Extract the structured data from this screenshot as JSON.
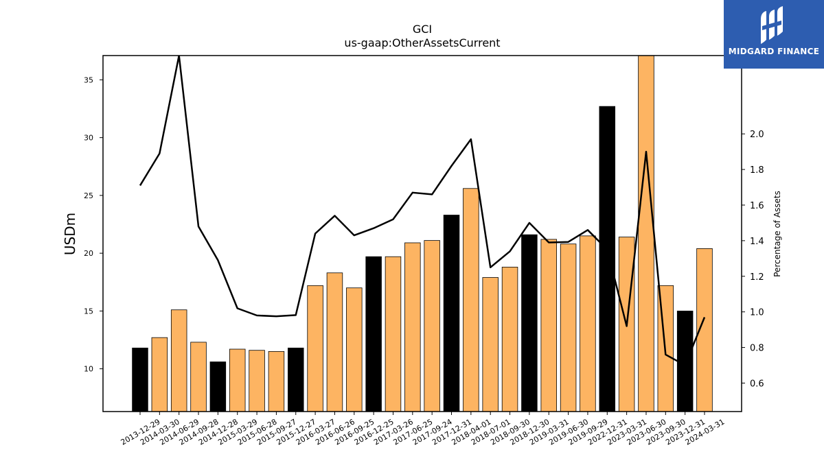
{
  "chart_data": {
    "type": "bar",
    "title": "GCI",
    "subtitle": "us-gaap:OtherAssetsCurrent",
    "ylabel": "USDm",
    "y2label": "Percentage of Assets",
    "ylim": [
      6.3,
      37.1
    ],
    "y2lim": [
      0.44,
      2.44
    ],
    "yticks": [
      10,
      15,
      20,
      25,
      30,
      35
    ],
    "y2ticks": [
      0.6,
      0.8,
      1.0,
      1.2,
      1.4,
      1.6,
      1.8,
      2.0
    ],
    "categories": [
      "2013-12-29",
      "2014-03-30",
      "2014-06-29",
      "2014-09-28",
      "2014-12-28",
      "2015-03-29",
      "2015-06-28",
      "2015-09-27",
      "2015-12-27",
      "2016-03-27",
      "2016-06-26",
      "2016-09-25",
      "2016-12-25",
      "2017-03-26",
      "2017-06-25",
      "2017-09-24",
      "2017-12-31",
      "2018-04-01",
      "2018-07-01",
      "2018-09-30",
      "2018-12-30",
      "2019-03-31",
      "2019-06-30",
      "2019-09-29",
      "2022-12-31",
      "2023-03-31",
      "2023-06-30",
      "2023-09-30",
      "2023-12-31",
      "2024-03-31"
    ],
    "series": [
      {
        "type": "bar",
        "values": [
          11.8,
          12.7,
          15.1,
          12.3,
          10.6,
          11.7,
          11.6,
          11.5,
          11.8,
          17.2,
          18.3,
          17.0,
          19.7,
          19.7,
          20.9,
          21.1,
          23.3,
          25.6,
          17.9,
          18.8,
          21.6,
          21.2,
          20.8,
          21.5,
          32.7,
          21.4,
          37.1,
          17.2,
          15.0,
          20.4
        ],
        "colors": [
          "#000000",
          "#fdb462",
          "#fdb462",
          "#fdb462",
          "#000000",
          "#fdb462",
          "#fdb462",
          "#fdb462",
          "#000000",
          "#fdb462",
          "#fdb462",
          "#fdb462",
          "#000000",
          "#fdb462",
          "#fdb462",
          "#fdb462",
          "#000000",
          "#fdb462",
          "#fdb462",
          "#fdb462",
          "#000000",
          "#fdb462",
          "#fdb462",
          "#fdb462",
          "#000000",
          "#fdb462",
          "#fdb462",
          "#fdb462",
          "#000000",
          "#fdb462"
        ]
      },
      {
        "type": "line",
        "axis": "right",
        "color": "#000000",
        "values": [
          1.71,
          1.89,
          2.44,
          1.48,
          1.29,
          1.02,
          0.98,
          0.975,
          0.982,
          1.44,
          1.54,
          1.43,
          1.47,
          1.52,
          1.67,
          1.66,
          1.82,
          1.97,
          1.25,
          1.34,
          1.5,
          1.39,
          1.393,
          1.46,
          1.35,
          0.92,
          1.9,
          0.76,
          0.7,
          0.97
        ]
      }
    ],
    "grid": false
  },
  "logo": {
    "text": "MIDGARD FINANCE",
    "icon": "midgard-logo-icon"
  }
}
